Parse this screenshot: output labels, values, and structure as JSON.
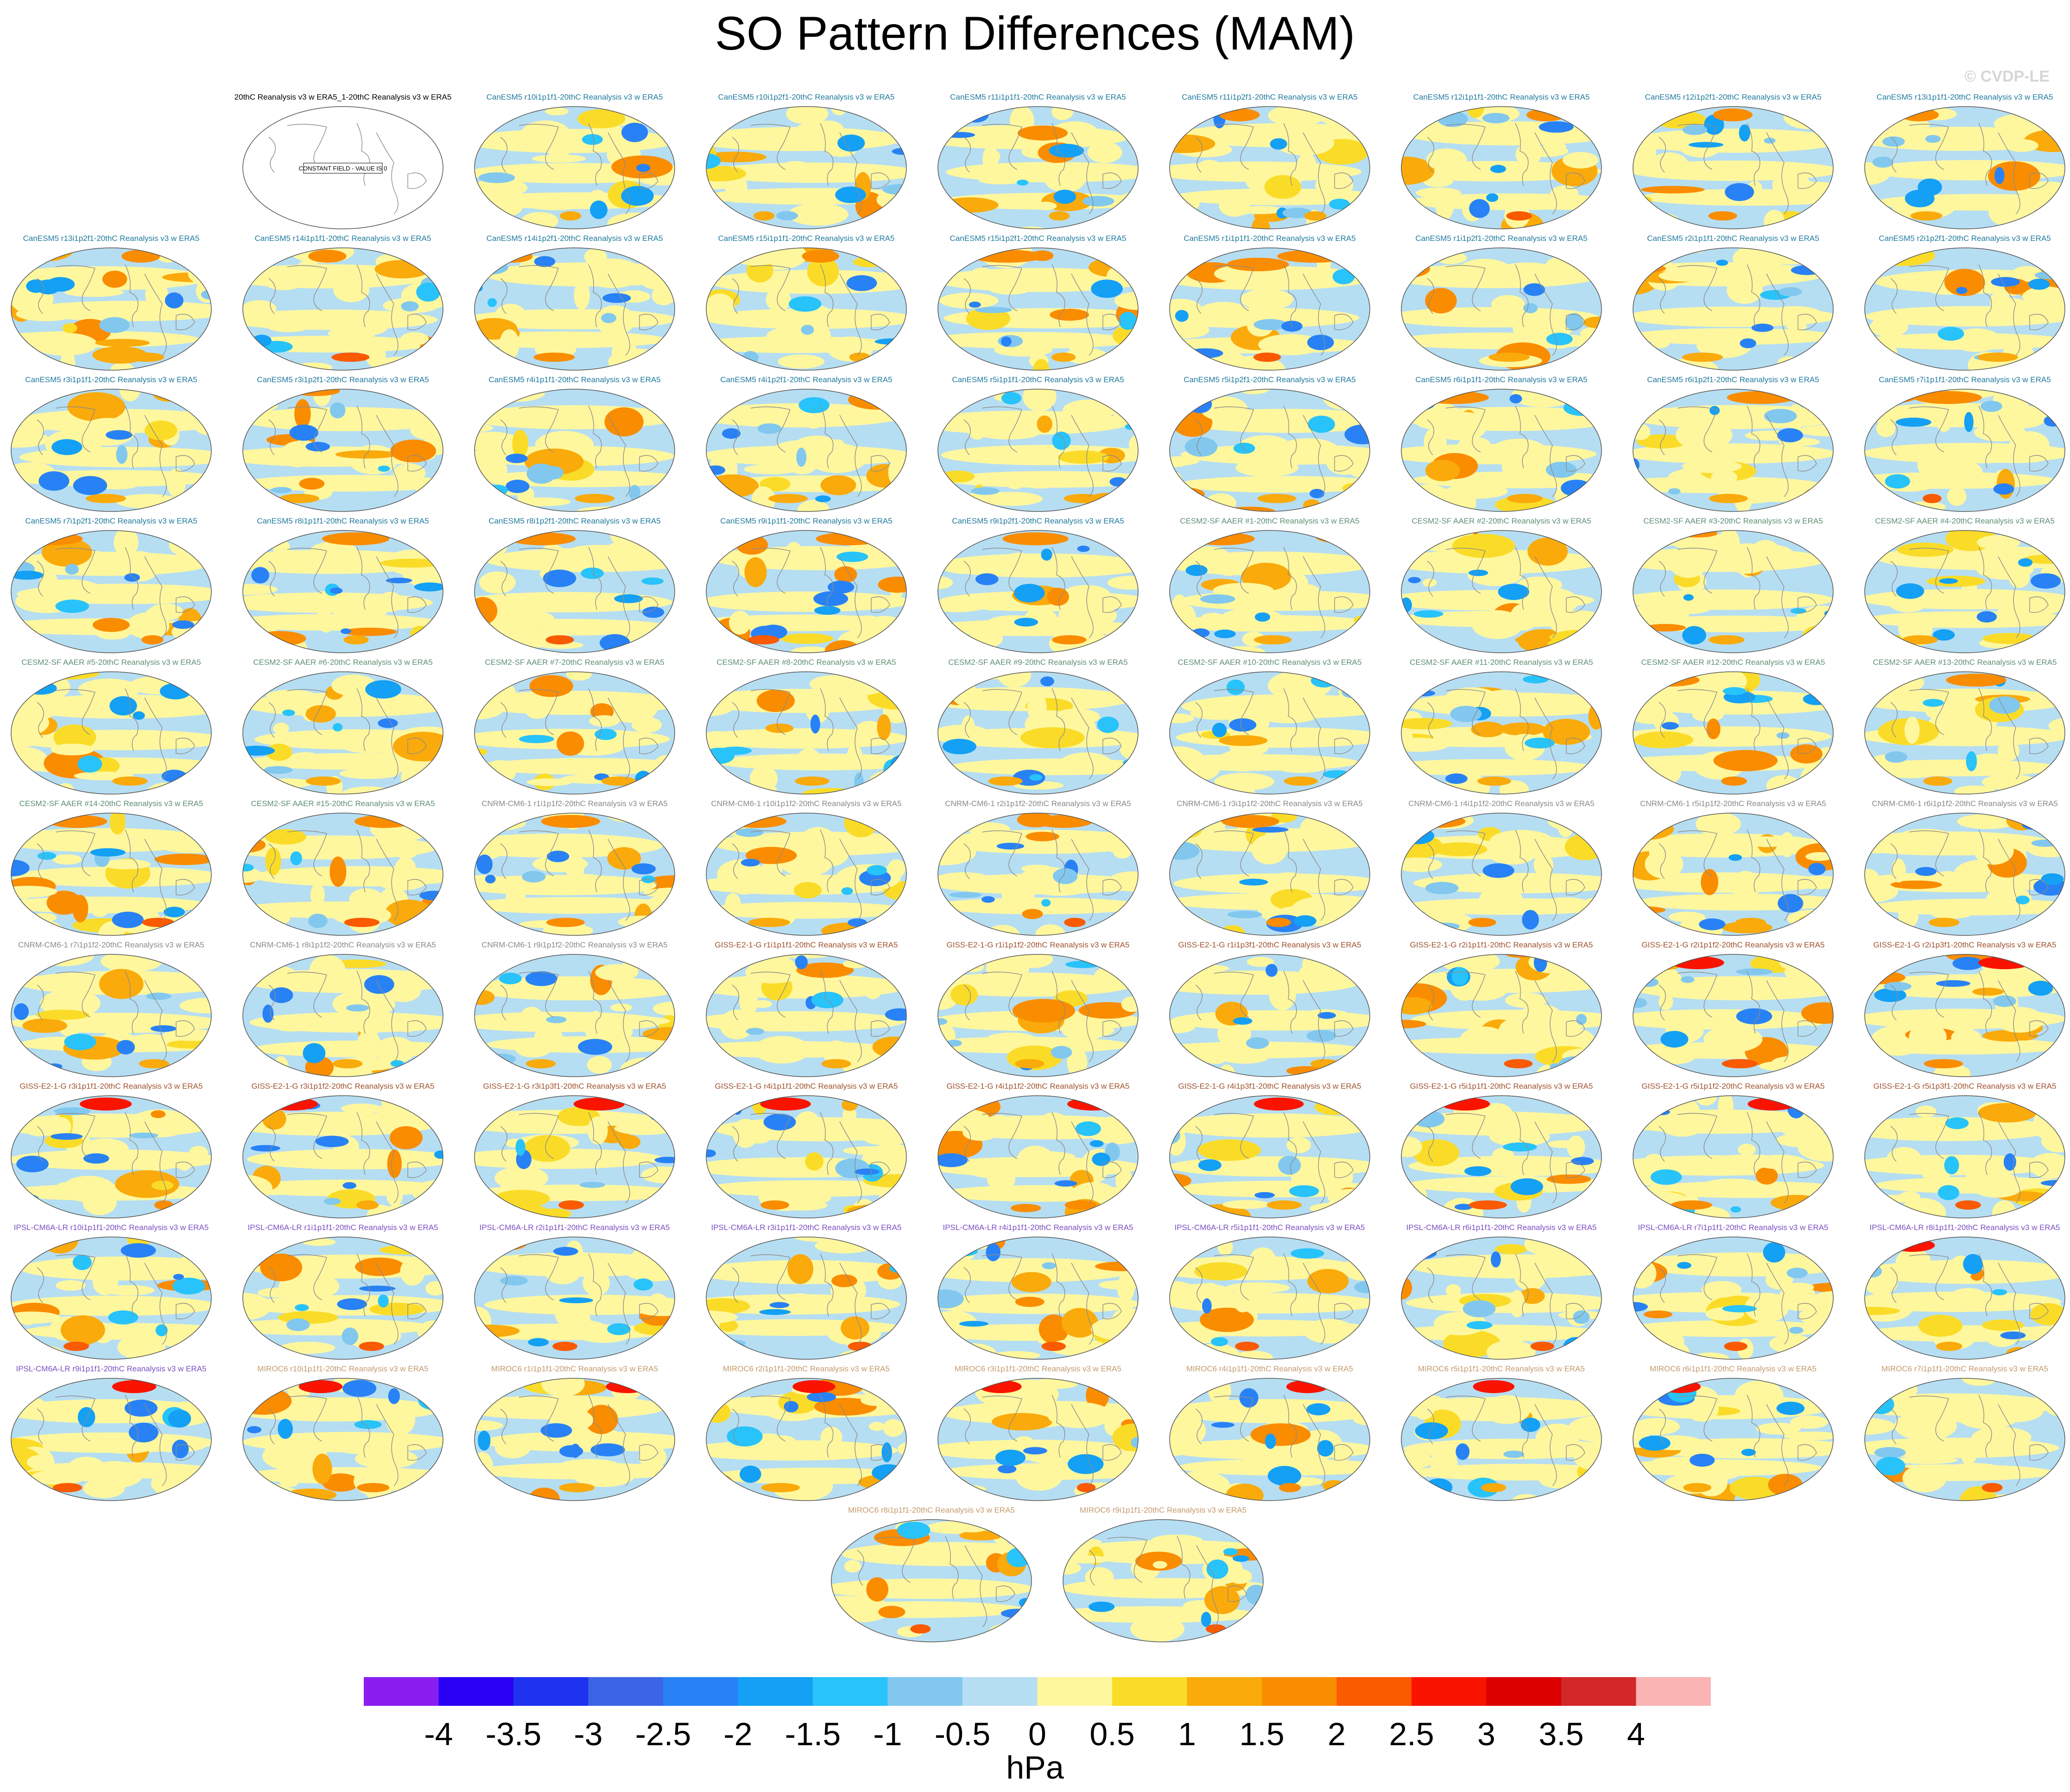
{
  "title": "SO Pattern Differences (MAM)",
  "watermark": "© CVDP-LE",
  "colors": {
    "ocean_neg": "#b6def2",
    "ocean_pos": "#fff79e",
    "coast": "#8c8c8c",
    "model_canesm5": "#1f7a9e",
    "model_cesm2": "#5f8f74",
    "model_cnrm": "#8a8a8a",
    "model_giss": "#a0522d",
    "model_ipsl": "#7b4fc2",
    "model_miroc": "#c49a6c"
  },
  "panels": [
    {
      "title": "20thC Reanalysis v3 w ERA5_1-20thC Reanalysis v3 w ERA5",
      "group": "obs",
      "note": "CONSTANT FIELD - VALUE IS 0"
    },
    {
      "title": "CanESM5 r10i1p1f1-20thC Reanalysis v3 w ERA5",
      "group": "canesm5"
    },
    {
      "title": "CanESM5 r10i1p2f1-20thC Reanalysis v3 w ERA5",
      "group": "canesm5"
    },
    {
      "title": "CanESM5 r11i1p1f1-20thC Reanalysis v3 w ERA5",
      "group": "canesm5"
    },
    {
      "title": "CanESM5 r11i1p2f1-20thC Reanalysis v3 w ERA5",
      "group": "canesm5"
    },
    {
      "title": "CanESM5 r12i1p1f1-20thC Reanalysis v3 w ERA5",
      "group": "canesm5"
    },
    {
      "title": "CanESM5 r12i1p2f1-20thC Reanalysis v3 w ERA5",
      "group": "canesm5"
    },
    {
      "title": "CanESM5 r13i1p1f1-20thC Reanalysis v3 w ERA5",
      "group": "canesm5"
    },
    {
      "title": "CanESM5 r13i1p2f1-20thC Reanalysis v3 w ERA5",
      "group": "canesm5"
    },
    {
      "title": "CanESM5 r14i1p1f1-20thC Reanalysis v3 w ERA5",
      "group": "canesm5"
    },
    {
      "title": "CanESM5 r14i1p2f1-20thC Reanalysis v3 w ERA5",
      "group": "canesm5"
    },
    {
      "title": "CanESM5 r15i1p1f1-20thC Reanalysis v3 w ERA5",
      "group": "canesm5"
    },
    {
      "title": "CanESM5 r15i1p2f1-20thC Reanalysis v3 w ERA5",
      "group": "canesm5"
    },
    {
      "title": "CanESM5 r1i1p1f1-20thC Reanalysis v3 w ERA5",
      "group": "canesm5"
    },
    {
      "title": "CanESM5 r1i1p2f1-20thC Reanalysis v3 w ERA5",
      "group": "canesm5"
    },
    {
      "title": "CanESM5 r2i1p1f1-20thC Reanalysis v3 w ERA5",
      "group": "canesm5"
    },
    {
      "title": "CanESM5 r2i1p2f1-20thC Reanalysis v3 w ERA5",
      "group": "canesm5"
    },
    {
      "title": "CanESM5 r3i1p1f1-20thC Reanalysis v3 w ERA5",
      "group": "canesm5"
    },
    {
      "title": "CanESM5 r3i1p2f1-20thC Reanalysis v3 w ERA5",
      "group": "canesm5"
    },
    {
      "title": "CanESM5 r4i1p1f1-20thC Reanalysis v3 w ERA5",
      "group": "canesm5"
    },
    {
      "title": "CanESM5 r4i1p2f1-20thC Reanalysis v3 w ERA5",
      "group": "canesm5"
    },
    {
      "title": "CanESM5 r5i1p1f1-20thC Reanalysis v3 w ERA5",
      "group": "canesm5"
    },
    {
      "title": "CanESM5 r5i1p2f1-20thC Reanalysis v3 w ERA5",
      "group": "canesm5"
    },
    {
      "title": "CanESM5 r6i1p1f1-20thC Reanalysis v3 w ERA5",
      "group": "canesm5"
    },
    {
      "title": "CanESM5 r6i1p2f1-20thC Reanalysis v3 w ERA5",
      "group": "canesm5"
    },
    {
      "title": "CanESM5 r7i1p1f1-20thC Reanalysis v3 w ERA5",
      "group": "canesm5"
    },
    {
      "title": "CanESM5 r7i1p2f1-20thC Reanalysis v3 w ERA5",
      "group": "canesm5"
    },
    {
      "title": "CanESM5 r8i1p1f1-20thC Reanalysis v3 w ERA5",
      "group": "canesm5"
    },
    {
      "title": "CanESM5 r8i1p2f1-20thC Reanalysis v3 w ERA5",
      "group": "canesm5"
    },
    {
      "title": "CanESM5 r9i1p1f1-20thC Reanalysis v3 w ERA5",
      "group": "canesm5"
    },
    {
      "title": "CanESM5 r9i1p2f1-20thC Reanalysis v3 w ERA5",
      "group": "canesm5"
    },
    {
      "title": "CESM2-SF AAER #1-20thC Reanalysis v3 w ERA5",
      "group": "cesm2"
    },
    {
      "title": "CESM2-SF AAER #2-20thC Reanalysis v3 w ERA5",
      "group": "cesm2"
    },
    {
      "title": "CESM2-SF AAER #3-20thC Reanalysis v3 w ERA5",
      "group": "cesm2"
    },
    {
      "title": "CESM2-SF AAER #4-20thC Reanalysis v3 w ERA5",
      "group": "cesm2"
    },
    {
      "title": "CESM2-SF AAER #5-20thC Reanalysis v3 w ERA5",
      "group": "cesm2"
    },
    {
      "title": "CESM2-SF AAER #6-20thC Reanalysis v3 w ERA5",
      "group": "cesm2"
    },
    {
      "title": "CESM2-SF AAER #7-20thC Reanalysis v3 w ERA5",
      "group": "cesm2"
    },
    {
      "title": "CESM2-SF AAER #8-20thC Reanalysis v3 w ERA5",
      "group": "cesm2"
    },
    {
      "title": "CESM2-SF AAER #9-20thC Reanalysis v3 w ERA5",
      "group": "cesm2"
    },
    {
      "title": "CESM2-SF AAER #10-20thC Reanalysis v3 w ERA5",
      "group": "cesm2"
    },
    {
      "title": "CESM2-SF AAER #11-20thC Reanalysis v3 w ERA5",
      "group": "cesm2"
    },
    {
      "title": "CESM2-SF AAER #12-20thC Reanalysis v3 w ERA5",
      "group": "cesm2"
    },
    {
      "title": "CESM2-SF AAER #13-20thC Reanalysis v3 w ERA5",
      "group": "cesm2"
    },
    {
      "title": "CESM2-SF AAER #14-20thC Reanalysis v3 w ERA5",
      "group": "cesm2"
    },
    {
      "title": "CESM2-SF AAER #15-20thC Reanalysis v3 w ERA5",
      "group": "cesm2"
    },
    {
      "title": "CNRM-CM6-1 r1i1p1f2-20thC Reanalysis v3 w ERA5",
      "group": "cnrm"
    },
    {
      "title": "CNRM-CM6-1 r10i1p1f2-20thC Reanalysis v3 w ERA5",
      "group": "cnrm"
    },
    {
      "title": "CNRM-CM6-1 r2i1p1f2-20thC Reanalysis v3 w ERA5",
      "group": "cnrm"
    },
    {
      "title": "CNRM-CM6-1 r3i1p1f2-20thC Reanalysis v3 w ERA5",
      "group": "cnrm"
    },
    {
      "title": "CNRM-CM6-1 r4i1p1f2-20thC Reanalysis v3 w ERA5",
      "group": "cnrm"
    },
    {
      "title": "CNRM-CM6-1 r5i1p1f2-20thC Reanalysis v3 w ERA5",
      "group": "cnrm"
    },
    {
      "title": "CNRM-CM6-1 r6i1p1f2-20thC Reanalysis v3 w ERA5",
      "group": "cnrm"
    },
    {
      "title": "CNRM-CM6-1 r7i1p1f2-20thC Reanalysis v3 w ERA5",
      "group": "cnrm"
    },
    {
      "title": "CNRM-CM6-1 r8i1p1f2-20thC Reanalysis v3 w ERA5",
      "group": "cnrm"
    },
    {
      "title": "CNRM-CM6-1 r9i1p1f2-20thC Reanalysis v3 w ERA5",
      "group": "cnrm"
    },
    {
      "title": "GISS-E2-1-G r1i1p1f1-20thC Reanalysis v3 w ERA5",
      "group": "giss"
    },
    {
      "title": "GISS-E2-1-G r1i1p1f2-20thC Reanalysis v3 w ERA5",
      "group": "giss"
    },
    {
      "title": "GISS-E2-1-G r1i1p3f1-20thC Reanalysis v3 w ERA5",
      "group": "giss"
    },
    {
      "title": "GISS-E2-1-G r2i1p1f1-20thC Reanalysis v3 w ERA5",
      "group": "giss"
    },
    {
      "title": "GISS-E2-1-G r2i1p1f2-20thC Reanalysis v3 w ERA5",
      "group": "giss"
    },
    {
      "title": "GISS-E2-1-G r2i1p3f1-20thC Reanalysis v3 w ERA5",
      "group": "giss"
    },
    {
      "title": "GISS-E2-1-G r3i1p1f1-20thC Reanalysis v3 w ERA5",
      "group": "giss"
    },
    {
      "title": "GISS-E2-1-G r3i1p1f2-20thC Reanalysis v3 w ERA5",
      "group": "giss"
    },
    {
      "title": "GISS-E2-1-G r3i1p3f1-20thC Reanalysis v3 w ERA5",
      "group": "giss"
    },
    {
      "title": "GISS-E2-1-G r4i1p1f1-20thC Reanalysis v3 w ERA5",
      "group": "giss"
    },
    {
      "title": "GISS-E2-1-G r4i1p1f2-20thC Reanalysis v3 w ERA5",
      "group": "giss"
    },
    {
      "title": "GISS-E2-1-G r4i1p3f1-20thC Reanalysis v3 w ERA5",
      "group": "giss"
    },
    {
      "title": "GISS-E2-1-G r5i1p1f1-20thC Reanalysis v3 w ERA5",
      "group": "giss"
    },
    {
      "title": "GISS-E2-1-G r5i1p1f2-20thC Reanalysis v3 w ERA5",
      "group": "giss"
    },
    {
      "title": "GISS-E2-1-G r5i1p3f1-20thC Reanalysis v3 w ERA5",
      "group": "giss"
    },
    {
      "title": "IPSL-CM6A-LR r10i1p1f1-20thC Reanalysis v3 w ERA5",
      "group": "ipsl"
    },
    {
      "title": "IPSL-CM6A-LR r1i1p1f1-20thC Reanalysis v3 w ERA5",
      "group": "ipsl"
    },
    {
      "title": "IPSL-CM6A-LR r2i1p1f1-20thC Reanalysis v3 w ERA5",
      "group": "ipsl"
    },
    {
      "title": "IPSL-CM6A-LR r3i1p1f1-20thC Reanalysis v3 w ERA5",
      "group": "ipsl"
    },
    {
      "title": "IPSL-CM6A-LR r4i1p1f1-20thC Reanalysis v3 w ERA5",
      "group": "ipsl"
    },
    {
      "title": "IPSL-CM6A-LR r5i1p1f1-20thC Reanalysis v3 w ERA5",
      "group": "ipsl"
    },
    {
      "title": "IPSL-CM6A-LR r6i1p1f1-20thC Reanalysis v3 w ERA5",
      "group": "ipsl"
    },
    {
      "title": "IPSL-CM6A-LR r7i1p1f1-20thC Reanalysis v3 w ERA5",
      "group": "ipsl"
    },
    {
      "title": "IPSL-CM6A-LR r8i1p1f1-20thC Reanalysis v3 w ERA5",
      "group": "ipsl"
    },
    {
      "title": "IPSL-CM6A-LR r9i1p1f1-20thC Reanalysis v3 w ERA5",
      "group": "ipsl"
    },
    {
      "title": "MIROC6 r10i1p1f1-20thC Reanalysis v3 w ERA5",
      "group": "miroc"
    },
    {
      "title": "MIROC6 r1i1p1f1-20thC Reanalysis v3 w ERA5",
      "group": "miroc"
    },
    {
      "title": "MIROC6 r2i1p1f1-20thC Reanalysis v3 w ERA5",
      "group": "miroc"
    },
    {
      "title": "MIROC6 r3i1p1f1-20thC Reanalysis v3 w ERA5",
      "group": "miroc"
    },
    {
      "title": "MIROC6 r4i1p1f1-20thC Reanalysis v3 w ERA5",
      "group": "miroc"
    },
    {
      "title": "MIROC6 r5i1p1f1-20thC Reanalysis v3 w ERA5",
      "group": "miroc"
    },
    {
      "title": "MIROC6 r6i1p1f1-20thC Reanalysis v3 w ERA5",
      "group": "miroc"
    },
    {
      "title": "MIROC6 r7i1p1f1-20thC Reanalysis v3 w ERA5",
      "group": "miroc"
    },
    {
      "title": "MIROC6 r8i1p1f1-20thC Reanalysis v3 w ERA5",
      "group": "miroc"
    },
    {
      "title": "MIROC6 r9i1p1f1-20thC Reanalysis v3 w ERA5",
      "group": "miroc"
    }
  ],
  "chart_data": {
    "type": "heatmap",
    "title": "SO Pattern Differences (MAM)",
    "colorbar": {
      "label": "hPa",
      "levels": [
        "-4",
        "-3.5",
        "-3",
        "-2.5",
        "-2",
        "-1.5",
        "-1",
        "-0.5",
        "0",
        "0.5",
        "1",
        "1.5",
        "2",
        "2.5",
        "3",
        "3.5",
        "4"
      ],
      "colors": [
        "#8a1ef0",
        "#2a00f5",
        "#1e32f0",
        "#3c64e6",
        "#2882f5",
        "#14a0f5",
        "#28c3fa",
        "#82c8ee",
        "#b6def2",
        "#fff79e",
        "#fadc28",
        "#faaa0a",
        "#fa8c00",
        "#fa5a00",
        "#fa1400",
        "#dc0000",
        "#d22828",
        "#fab4b4"
      ]
    }
  }
}
